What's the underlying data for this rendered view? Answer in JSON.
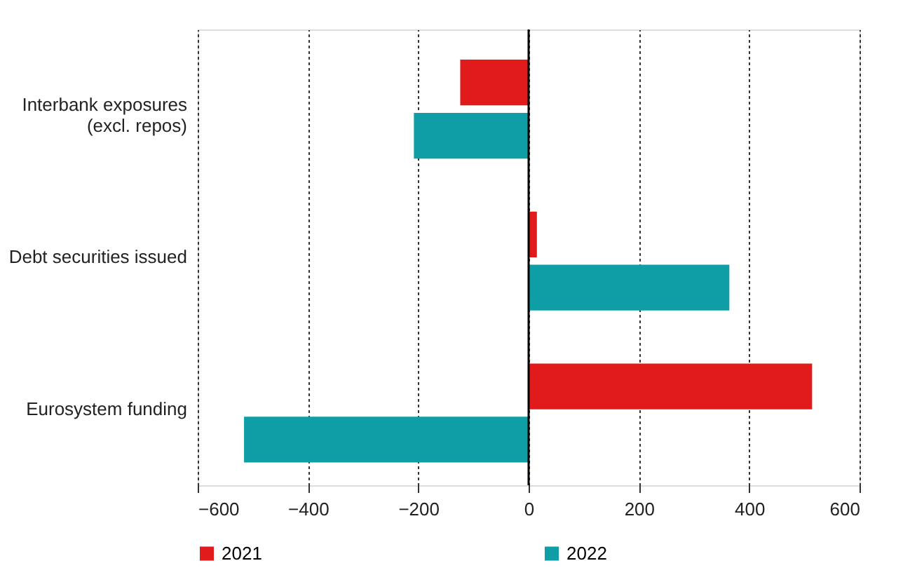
{
  "chart_data": {
    "type": "bar",
    "orientation": "horizontal",
    "categories": [
      "Interbank exposures\n(excl. repos)",
      "Debt securities issued",
      "Eurosystem funding"
    ],
    "series": [
      {
        "name": "2021",
        "color": "#e11b1b",
        "values": [
          -124,
          15,
          514
        ]
      },
      {
        "name": "2022",
        "color": "#109ea6",
        "values": [
          -208,
          364,
          -516
        ]
      }
    ],
    "xlim": [
      -600,
      600
    ],
    "xticks": [
      -600,
      -400,
      -200,
      0,
      200,
      400,
      600
    ],
    "grid": "x",
    "legend": "bottom",
    "ref_lines": [
      {
        "axis": "x",
        "value": 0,
        "color": "#000000"
      }
    ]
  }
}
